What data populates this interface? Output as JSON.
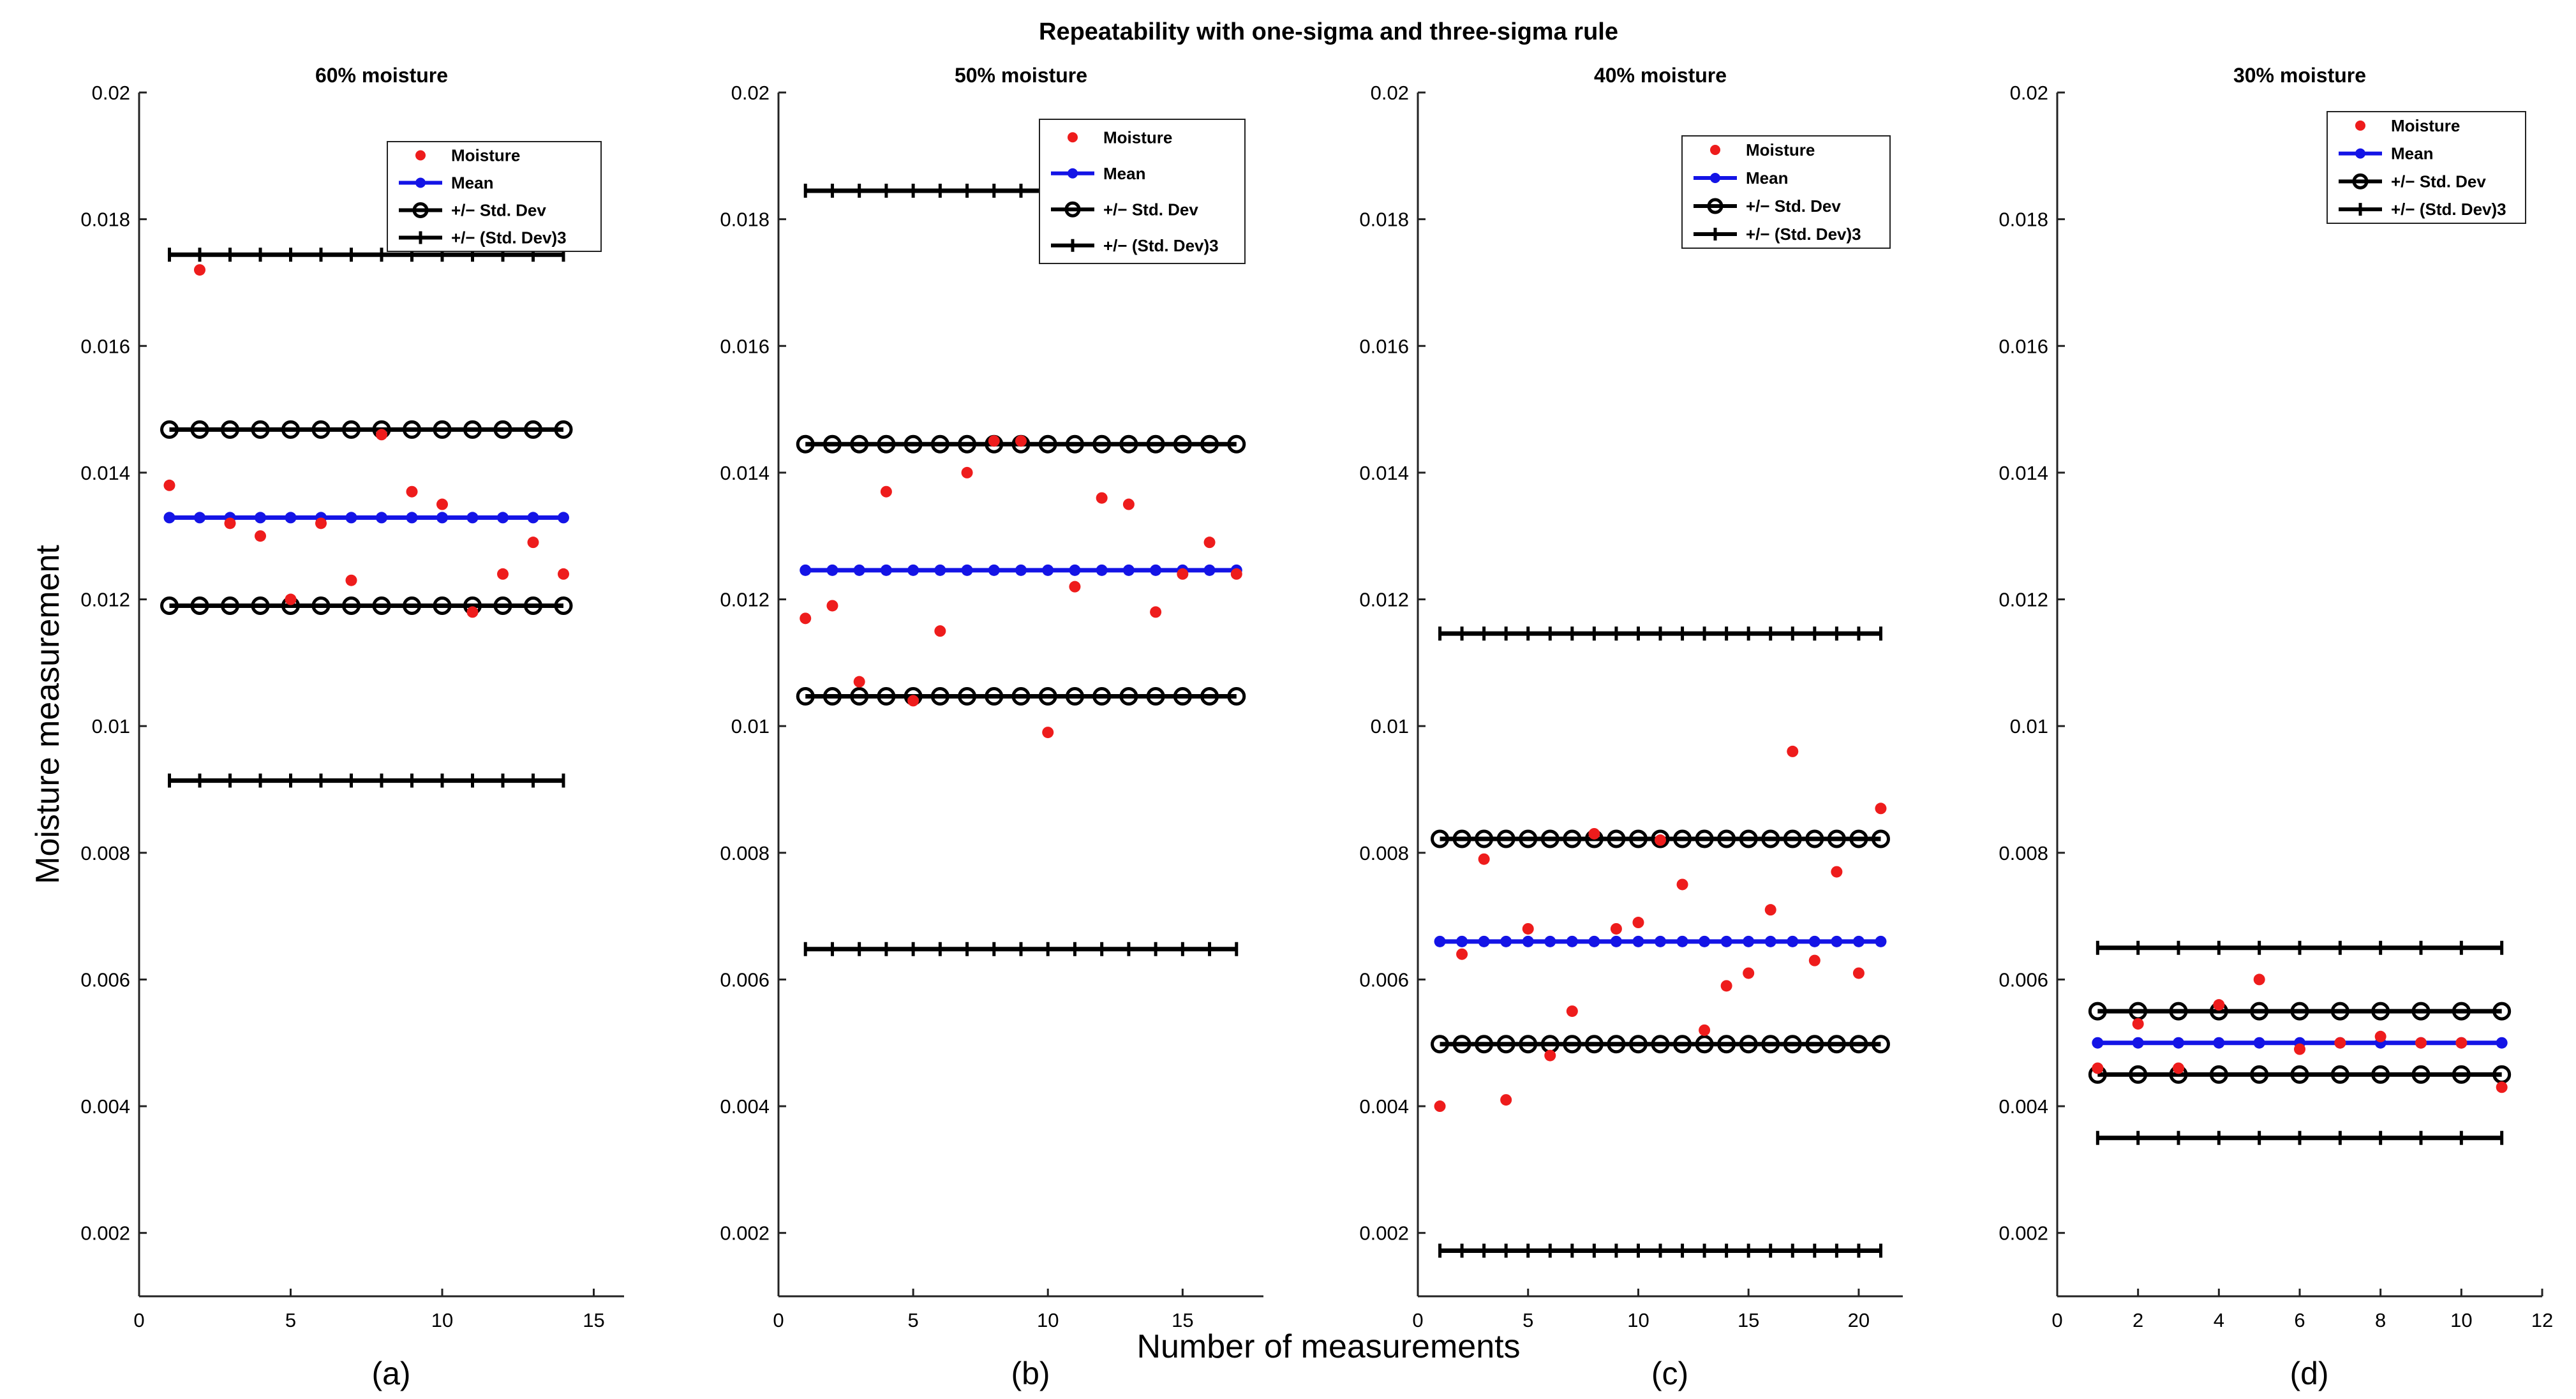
{
  "figure": {
    "title": "Repeatability with one-sigma and three-sigma rule",
    "ylabel": "Moisture measurement",
    "xlabel": "Number of measurements"
  },
  "colors": {
    "moisture": "#ee1c1c",
    "mean": "#1414e6",
    "std": "#000000"
  },
  "chart_data": [
    {
      "type": "scatter",
      "panel_label": "(a)",
      "title": "60% moisture",
      "xlim": [
        0,
        16
      ],
      "ylim": [
        0.001,
        0.02
      ],
      "xticks": [
        0,
        5,
        10,
        15
      ],
      "xtick_labels": [
        "0",
        "5",
        "10",
        "15"
      ],
      "yticks": [
        0.002,
        0.004,
        0.006,
        0.008,
        0.01,
        0.012,
        0.014,
        0.016,
        0.018,
        0.02
      ],
      "ytick_labels": [
        "0.002",
        "0.004",
        "0.006",
        "0.008",
        "0.01",
        "0.012",
        "0.014",
        "0.016",
        "0.018",
        "0.02"
      ],
      "legend": [
        "Moisture",
        "Mean",
        "+/−  Std. Dev",
        "+/− (Std. Dev)3"
      ],
      "legend_position": "upper-right",
      "x": [
        1,
        2,
        3,
        4,
        5,
        6,
        7,
        8,
        9,
        10,
        11,
        12,
        13,
        14
      ],
      "moisture": [
        0.0138,
        0.0172,
        0.0132,
        0.013,
        0.012,
        0.0132,
        0.0123,
        0.0146,
        0.0137,
        0.0135,
        0.0118,
        0.0124,
        0.0129,
        0.0124
      ],
      "mean": 0.01329,
      "std_upper": 0.01468,
      "std_lower": 0.0119,
      "sigma3_upper": 0.01744,
      "sigma3_lower": 0.00914
    },
    {
      "type": "scatter",
      "panel_label": "(b)",
      "title": "50% moisture",
      "xlim": [
        0,
        18
      ],
      "ylim": [
        0.001,
        0.02
      ],
      "xticks": [
        0,
        5,
        10,
        15
      ],
      "xtick_labels": [
        "0",
        "5",
        "10",
        "15"
      ],
      "yticks": [
        0.002,
        0.004,
        0.006,
        0.008,
        0.01,
        0.012,
        0.014,
        0.016,
        0.018,
        0.02
      ],
      "ytick_labels": [
        "0.002",
        "0.004",
        "0.006",
        "0.008",
        "0.01",
        "0.012",
        "0.014",
        "0.016",
        "0.018",
        "0.02"
      ],
      "legend": [
        "Moisture",
        "Mean",
        "+/−  Std. Dev",
        "+/− (Std. Dev)3"
      ],
      "legend_position": "upper-right",
      "x": [
        1,
        2,
        3,
        4,
        5,
        6,
        7,
        8,
        9,
        10,
        11,
        12,
        13,
        14,
        15,
        16,
        17
      ],
      "moisture": [
        0.0117,
        0.0119,
        0.0107,
        0.0137,
        0.0104,
        0.0115,
        0.014,
        0.0145,
        0.0145,
        0.0099,
        0.0122,
        0.0136,
        0.0135,
        0.0118,
        0.0124,
        0.0129,
        0.0124
      ],
      "mean": 0.01246,
      "std_upper": 0.01445,
      "std_lower": 0.01047,
      "sigma3_upper": 0.01845,
      "sigma3_lower": 0.00648
    },
    {
      "type": "scatter",
      "panel_label": "(c)",
      "title": "40% moisture",
      "xlim": [
        0,
        22
      ],
      "ylim": [
        0.001,
        0.02
      ],
      "xticks": [
        0,
        5,
        10,
        15,
        20
      ],
      "xtick_labels": [
        "0",
        "5",
        "10",
        "15",
        "20"
      ],
      "yticks": [
        0.002,
        0.004,
        0.006,
        0.008,
        0.01,
        0.012,
        0.014,
        0.016,
        0.018,
        0.02
      ],
      "ytick_labels": [
        "0.002",
        "0.004",
        "0.006",
        "0.008",
        "0.01",
        "0.012",
        "0.014",
        "0.016",
        "0.018",
        "0.02"
      ],
      "legend": [
        "Moisture",
        "Mean",
        "+/−  Std. Dev",
        "+/− (Std. Dev)3"
      ],
      "legend_position": "upper-right",
      "x": [
        1,
        2,
        3,
        4,
        5,
        6,
        7,
        8,
        9,
        10,
        11,
        12,
        13,
        14,
        15,
        16,
        17,
        18,
        19,
        20,
        21
      ],
      "moisture": [
        0.004,
        0.0064,
        0.0079,
        0.0041,
        0.0068,
        0.0048,
        0.0055,
        0.0083,
        0.0068,
        0.0069,
        0.0082,
        0.0075,
        0.0052,
        0.0059,
        0.0061,
        0.0071,
        0.0096,
        0.0063,
        0.0077,
        0.0061,
        0.0087
      ],
      "mean": 0.0066,
      "std_upper": 0.00822,
      "std_lower": 0.00498,
      "sigma3_upper": 0.01146,
      "sigma3_lower": 0.00172
    },
    {
      "type": "scatter",
      "panel_label": "(d)",
      "title": "30% moisture",
      "xlim": [
        0,
        12
      ],
      "ylim": [
        0.001,
        0.02
      ],
      "xticks": [
        0,
        2,
        4,
        6,
        8,
        10,
        12
      ],
      "xtick_labels": [
        "0",
        "2",
        "4",
        "6",
        "8",
        "10",
        "12"
      ],
      "yticks": [
        0.002,
        0.004,
        0.006,
        0.008,
        0.01,
        0.012,
        0.014,
        0.016,
        0.018,
        0.02
      ],
      "ytick_labels": [
        "0.002",
        "0.004",
        "0.006",
        "0.008",
        "0.01",
        "0.012",
        "0.014",
        "0.016",
        "0.018",
        "0.02"
      ],
      "legend": [
        "Moisture",
        "Mean",
        "+/−  Std. Dev",
        "+/− (Std. Dev)3"
      ],
      "legend_position": "upper-right",
      "x": [
        1,
        2,
        3,
        4,
        5,
        6,
        7,
        8,
        9,
        10,
        11
      ],
      "moisture": [
        0.0046,
        0.0053,
        0.0046,
        0.0056,
        0.006,
        0.0049,
        0.005,
        0.0051,
        0.005,
        0.005,
        0.0043
      ],
      "mean": 0.005,
      "std_upper": 0.0055,
      "std_lower": 0.0045,
      "sigma3_upper": 0.0065,
      "sigma3_lower": 0.0035
    }
  ]
}
